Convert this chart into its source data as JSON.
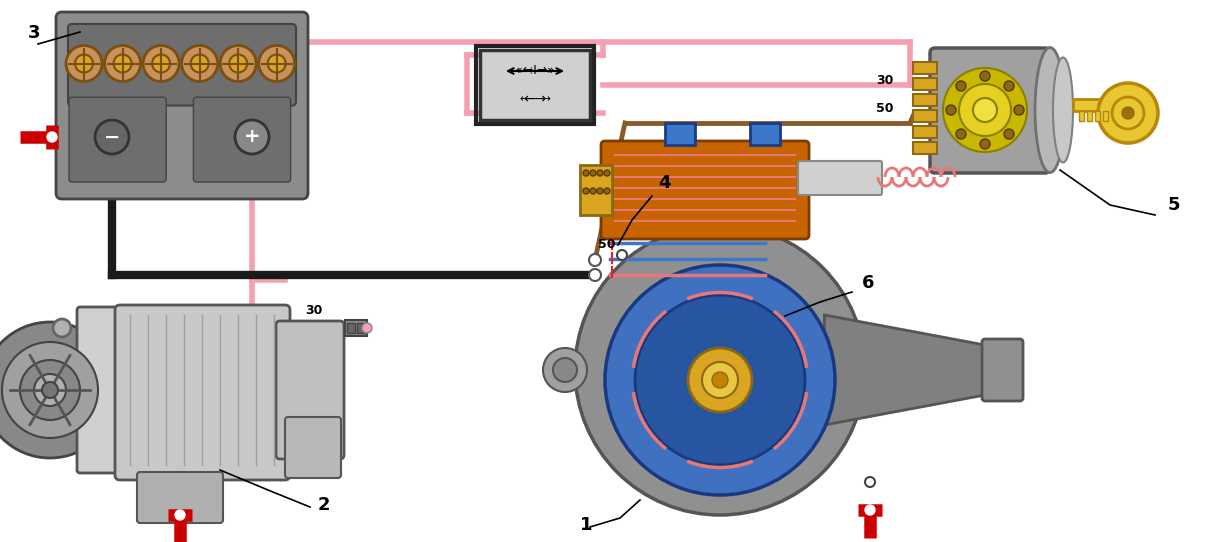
{
  "bg_color": "#ffffff",
  "fig_width": 12.22,
  "fig_height": 5.42,
  "colors": {
    "pink_wire": "#F5A0B0",
    "black_wire": "#1a1a1a",
    "brown_wire": "#8B5A2B",
    "red_terminal": "#CC0000",
    "battery_gray": "#8C8C8C",
    "battery_dark": "#6E6E6E",
    "cell_tan": "#C8925A",
    "cell_gold": "#DAA520",
    "gen_light": "#C8C8C8",
    "gen_mid": "#A8A8A8",
    "gen_dark": "#888888",
    "starter_gray": "#909090",
    "orange_sol": "#C86400",
    "blue_rotor": "#4878C8",
    "pink_coil": "#E87878",
    "yellow": "#DAA520",
    "ignition_gray": "#A0A0A0",
    "key_gold": "#E8C830",
    "relay_gray": "#D0D0D0",
    "relay_dark": "#404040",
    "white": "#FFFFFF"
  }
}
